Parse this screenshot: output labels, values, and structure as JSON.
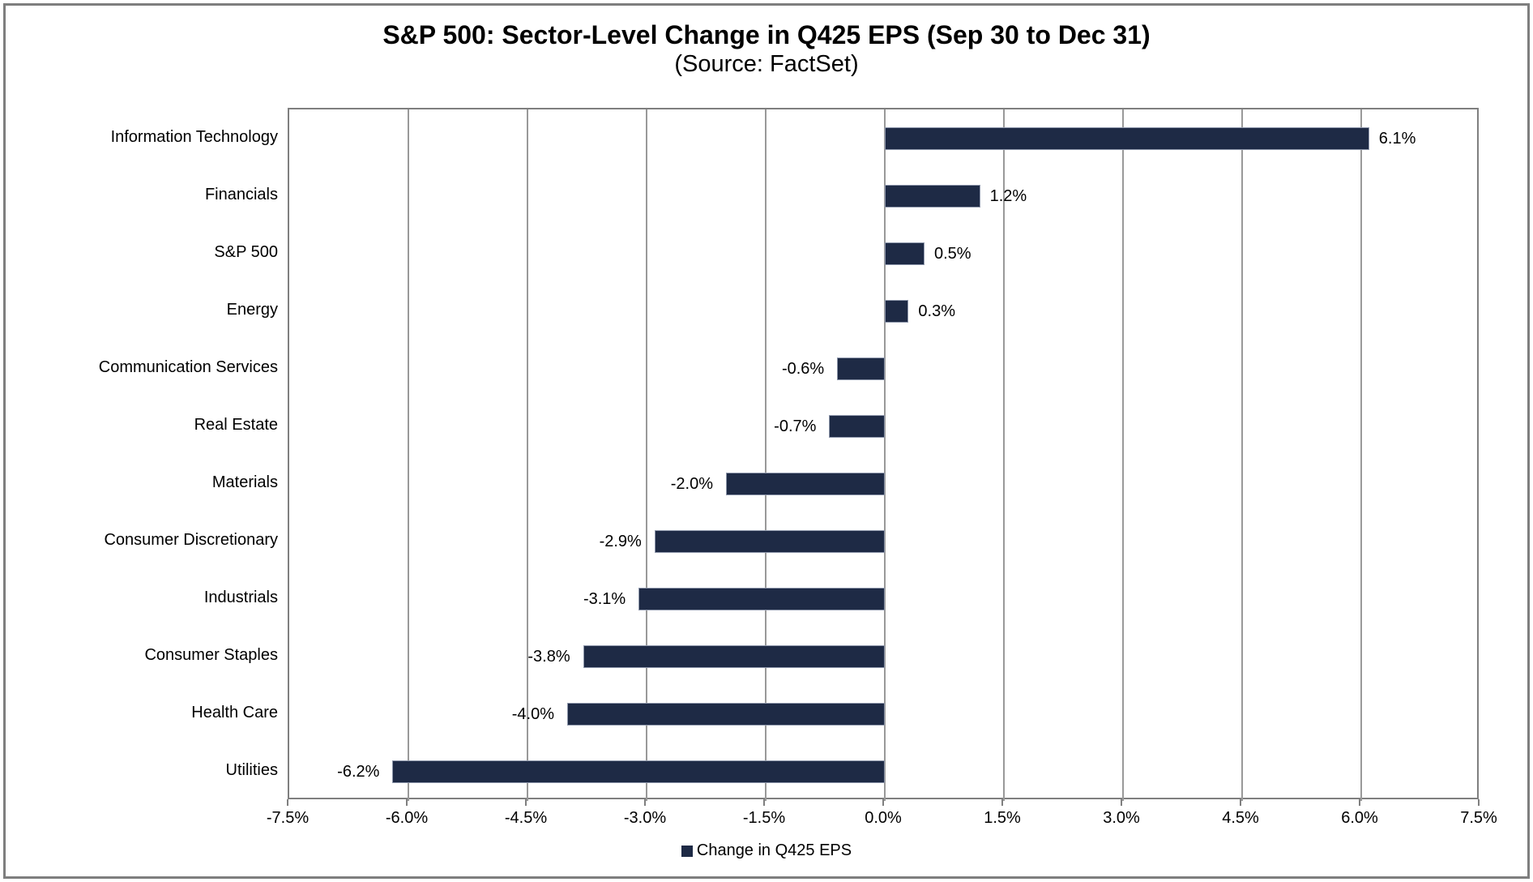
{
  "chart_data": {
    "type": "bar",
    "orientation": "horizontal",
    "title": "S&P 500: Sector-Level Change in Q425 EPS (Sep 30 to Dec 31)",
    "subtitle": "(Source: FactSet)",
    "categories": [
      "Information Technology",
      "Financials",
      "S&P 500",
      "Energy",
      "Communication Services",
      "Real Estate",
      "Materials",
      "Consumer Discretionary",
      "Industrials",
      "Consumer Staples",
      "Health Care",
      "Utilities"
    ],
    "values": [
      6.1,
      1.2,
      0.5,
      0.3,
      -0.6,
      -0.7,
      -2.0,
      -2.9,
      -3.1,
      -3.8,
      -4.0,
      -6.2
    ],
    "value_labels": [
      "6.1%",
      "1.2%",
      "0.5%",
      "0.3%",
      "-0.6%",
      "-0.7%",
      "-2.0%",
      "-2.9%",
      "-3.1%",
      "-3.8%",
      "-4.0%",
      "-6.2%"
    ],
    "xlim": [
      -7.5,
      7.5
    ],
    "tick_step": 1.5,
    "x_tick_labels": [
      "-7.5%",
      "-6.0%",
      "-4.5%",
      "-3.0%",
      "-1.5%",
      "0.0%",
      "1.5%",
      "3.0%",
      "4.5%",
      "6.0%",
      "7.5%"
    ],
    "legend": "Change in Q425 EPS",
    "legend_position": "bottom",
    "grid": true,
    "colors": {
      "bar": "#1e2a45",
      "bar_edge": "#8e97ab",
      "gridline": "#999999",
      "plot_border": "#7f7f7f",
      "text": "#000000",
      "background": "#ffffff"
    }
  }
}
